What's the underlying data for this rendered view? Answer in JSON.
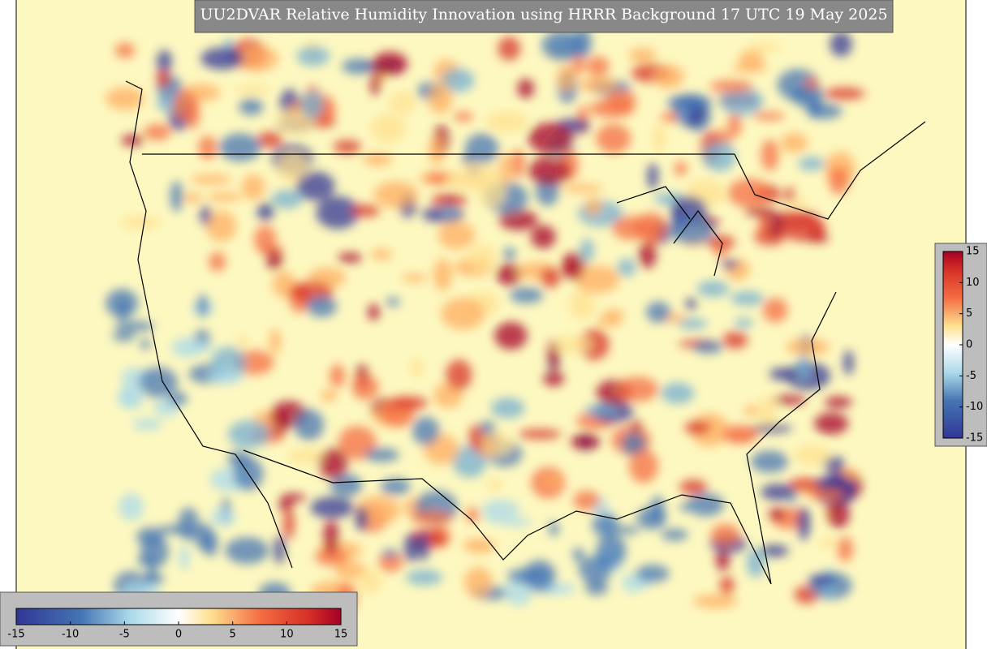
{
  "title": "UU2DVAR Relative Humidity Innovation using HRRR Background 17 UTC 19 May 2025",
  "colorbars": [
    {
      "orientation": "horizontal",
      "range": [
        -15,
        15
      ],
      "ticks": [
        -15,
        -10,
        -5,
        0,
        5,
        10,
        15
      ]
    },
    {
      "orientation": "vertical",
      "range": [
        -15,
        15
      ],
      "ticks": [
        -15,
        -10,
        -5,
        0,
        5,
        10,
        15
      ]
    }
  ]
}
